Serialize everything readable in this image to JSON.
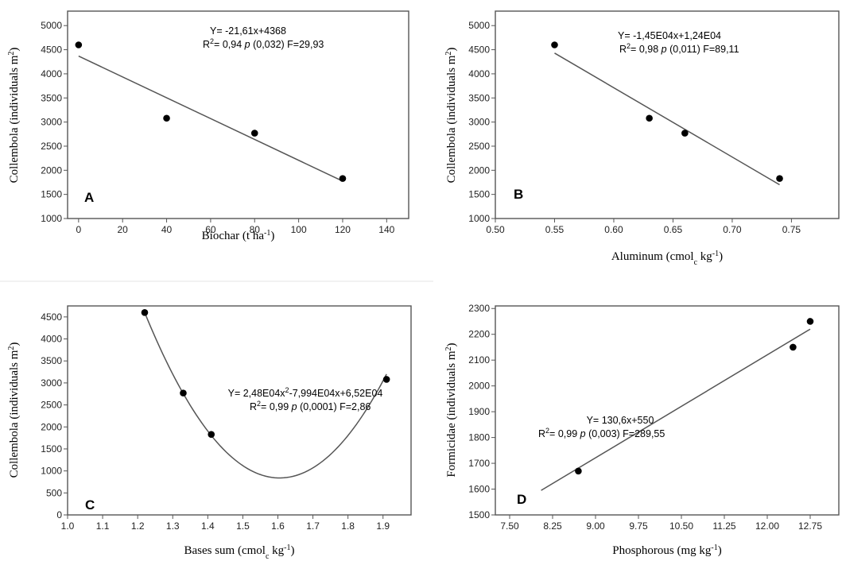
{
  "chart_data": [
    {
      "type": "scatter",
      "panel_label": "A",
      "xlabel": "Biochar (t ha",
      "xlabel_sup": "-1",
      "xlabel_tail": ")",
      "ylabel": "Collembola (individuals m",
      "ylabel_sup": "2",
      "ylabel_tail": ")",
      "xlim": [
        -5,
        150
      ],
      "ylim": [
        1000,
        5300
      ],
      "xticks": [
        0,
        20,
        40,
        60,
        80,
        100,
        120,
        140
      ],
      "xtick_labels": [
        "0",
        "20",
        "40",
        "60",
        "80",
        "100",
        "120",
        "140"
      ],
      "yticks": [
        1000,
        1500,
        2000,
        2500,
        3000,
        3500,
        4000,
        4500,
        5000
      ],
      "ytick_labels": [
        "1000",
        "1500",
        "2000",
        "2500",
        "3000",
        "3500",
        "4000",
        "4500",
        "5000"
      ],
      "points": [
        {
          "x": 0,
          "y": 4600
        },
        {
          "x": 40,
          "y": 3080
        },
        {
          "x": 80,
          "y": 2770
        },
        {
          "x": 120,
          "y": 1830
        }
      ],
      "fit": {
        "kind": "linear",
        "coef": [
          4368,
          -21.61
        ],
        "x_range": [
          0,
          120
        ]
      },
      "equation": "Y= -21,61x+4368",
      "stats": {
        "r2_prefix": "R",
        "r2_sup": "2",
        "r2_value": "= 0,94",
        "p_label": "p",
        "p_value": "(0,032)",
        "f_value": "F=29,93"
      }
    },
    {
      "type": "scatter",
      "panel_label": "B",
      "xlabel": "Aluminum (cmol",
      "xlabel_sub": "c",
      "xlabel_mid": " kg",
      "xlabel_sup": "-1",
      "xlabel_tail": ")",
      "ylabel": "Collembola (individuals m",
      "ylabel_sup": "2",
      "ylabel_tail": ")",
      "xlim": [
        0.5,
        0.79
      ],
      "ylim": [
        1000,
        5300
      ],
      "xticks": [
        0.5,
        0.55,
        0.6,
        0.65,
        0.7,
        0.75
      ],
      "xtick_labels": [
        "0.50",
        "0.55",
        "0.60",
        "0.65",
        "0.70",
        "0.75"
      ],
      "yticks": [
        1000,
        1500,
        2000,
        2500,
        3000,
        3500,
        4000,
        4500,
        5000
      ],
      "ytick_labels": [
        "1000",
        "1500",
        "2000",
        "2500",
        "3000",
        "3500",
        "4000",
        "4500",
        "5000"
      ],
      "points": [
        {
          "x": 0.55,
          "y": 4600
        },
        {
          "x": 0.63,
          "y": 3080
        },
        {
          "x": 0.66,
          "y": 2770
        },
        {
          "x": 0.74,
          "y": 1830
        }
      ],
      "fit": {
        "kind": "line",
        "from": [
          0.55,
          4430
        ],
        "to": [
          0.74,
          1700
        ]
      },
      "equation": "Y= -1,45E04x+1,24E04",
      "stats": {
        "r2_prefix": "R",
        "r2_sup": "2",
        "r2_value": "= 0,98",
        "p_label": "p",
        "p_value": "(0,011)",
        "f_value": "F=89,11"
      }
    },
    {
      "type": "scatter",
      "panel_label": "C",
      "xlabel": "Bases sum (cmol",
      "xlabel_sub": "c",
      "xlabel_mid": " kg",
      "xlabel_sup": "-1",
      "xlabel_tail": ")",
      "ylabel": "Collembola (individuals m",
      "ylabel_sup": "2",
      "ylabel_tail": ")",
      "xlim": [
        1.0,
        1.98
      ],
      "ylim": [
        0,
        4750
      ],
      "xticks": [
        1.0,
        1.1,
        1.2,
        1.3,
        1.4,
        1.5,
        1.6,
        1.7,
        1.8,
        1.9
      ],
      "xtick_labels": [
        "1.0",
        "1.1",
        "1.2",
        "1.3",
        "1.4",
        "1.5",
        "1.6",
        "1.7",
        "1.8",
        "1.9"
      ],
      "yticks": [
        0,
        500,
        1000,
        1500,
        2000,
        2500,
        3000,
        3500,
        4000,
        4500
      ],
      "ytick_labels": [
        "0",
        "500",
        "1000",
        "1500",
        "2000",
        "2500",
        "3000",
        "3500",
        "4000",
        "4500"
      ],
      "points": [
        {
          "x": 1.22,
          "y": 4600
        },
        {
          "x": 1.33,
          "y": 2770
        },
        {
          "x": 1.41,
          "y": 1830
        },
        {
          "x": 1.91,
          "y": 3080
        }
      ],
      "fit": {
        "kind": "quadratic",
        "vertex": [
          1.605,
          840
        ],
        "through": [
          1.22,
          4600
        ],
        "x_range": [
          1.22,
          1.91
        ]
      },
      "equation_prefix": "Y= 2,48E04x",
      "equation_sup": "2",
      "equation_tail": "-7,994E04x+6,52E04",
      "stats": {
        "r2_prefix": "R",
        "r2_sup": "2",
        "r2_value": "= 0,99",
        "p_label": "p",
        "p_value": "(0,0001)",
        "f_value": "F=2,86"
      }
    },
    {
      "type": "scatter",
      "panel_label": "D",
      "xlabel": "Phosphorous (mg kg",
      "xlabel_sup": "-1",
      "xlabel_tail": ")",
      "ylabel": "Formicidae (individuals m",
      "ylabel_sup": "2",
      "ylabel_tail": ")",
      "xlim": [
        7.25,
        13.25
      ],
      "ylim": [
        1500,
        2310
      ],
      "xticks": [
        7.5,
        8.25,
        9.0,
        9.75,
        10.5,
        11.25,
        12.0,
        12.75
      ],
      "xtick_labels": [
        "7.50",
        "8.25",
        "9.00",
        "9.75",
        "10.50",
        "11.25",
        "12.00",
        "12.75"
      ],
      "yticks": [
        1500,
        1600,
        1700,
        1800,
        1900,
        2000,
        2100,
        2200,
        2300
      ],
      "ytick_labels": [
        "1500",
        "1600",
        "1700",
        "1800",
        "1900",
        "2000",
        "2100",
        "2200",
        "2300"
      ],
      "points": [
        {
          "x": 8.7,
          "y": 1670
        },
        {
          "x": 12.45,
          "y": 2150
        },
        {
          "x": 12.75,
          "y": 2250
        }
      ],
      "fit": {
        "kind": "line",
        "from": [
          8.05,
          1595
        ],
        "to": [
          12.75,
          2220
        ]
      },
      "equation": "Y= 130,6x+550",
      "stats": {
        "r2_prefix": "R",
        "r2_sup": "2",
        "r2_value": "= 0,99",
        "p_label": "p",
        "p_value": "(0,003)",
        "f_value": "F=289,55"
      }
    }
  ]
}
